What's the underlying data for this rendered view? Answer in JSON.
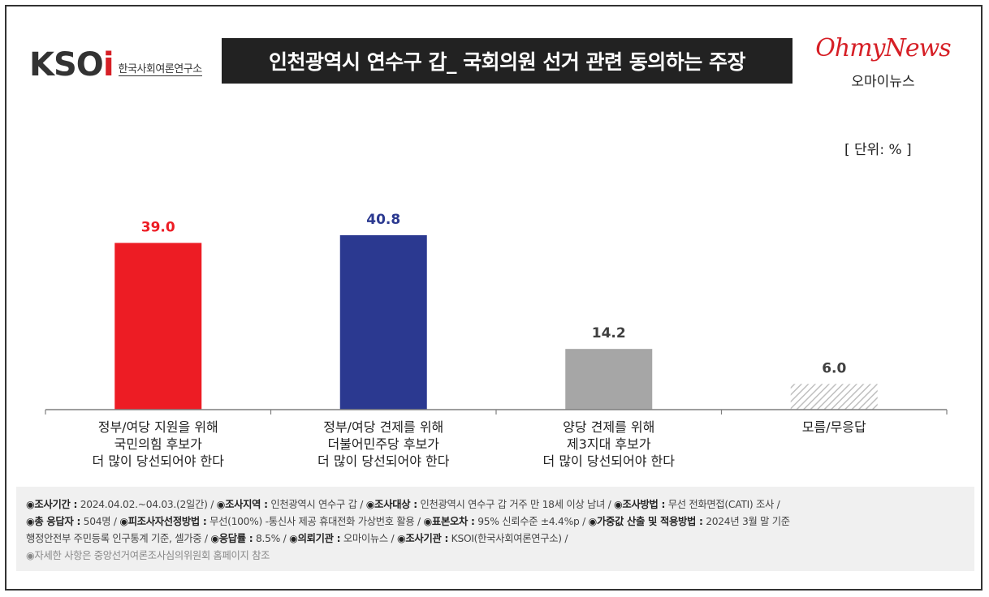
{
  "header": {
    "logo_mark_left": "KSO",
    "logo_mark_right": "i",
    "logo_sub": "한국사회여론연구소",
    "title": "인천광역시 연수구 갑_ 국회의원 선거 관련 동의하는 주장",
    "ohmynews_en": "OhmyNews",
    "ohmynews_ko": "오마이뉴스"
  },
  "unit_label": "[ 단위: % ]",
  "colors": {
    "bar_1": "#ed1c24",
    "bar_2": "#2b3990",
    "bar_3": "#a6a6a6",
    "bar_4": "#d9d9d9",
    "label_1": "#ed1c24",
    "label_2": "#2b3990",
    "label_3": "#404040",
    "label_4": "#404040"
  },
  "chart_data": {
    "type": "bar",
    "title": "인천광역시 연수구 갑_ 국회의원 선거 관련 동의하는 주장",
    "unit": "[ 단위: % ]",
    "categories": [
      [
        "정부/여당 지원을 위해",
        "국민의힘 후보가",
        "더 많이 당선되어야 한다"
      ],
      [
        "정부/여당 견제를 위해",
        "더불어민주당 후보가",
        "더 많이 당선되어야 한다"
      ],
      [
        "양당 견제를 위해",
        "제3지대 후보가",
        "더 많이 당선되어야 한다"
      ],
      [
        "모름/무응답"
      ]
    ],
    "values": [
      39.0,
      40.8,
      14.2,
      6.0
    ],
    "value_labels": [
      "39.0",
      "40.8",
      "14.2",
      "6.0"
    ],
    "ylim": [
      0,
      45
    ],
    "grid": false,
    "legend": "none"
  },
  "footer": {
    "line1": [
      {
        "k": "◉조사기간 :",
        "v": " 2024.04.02.~04.03.(2일간)  / "
      },
      {
        "k": "◉조사지역 :",
        "v": " 인천광역시  연수구  갑 / "
      },
      {
        "k": "◉조사대상 :",
        "v": " 인천광역시  연수구  갑 거주 만 18세  이상 남녀 / "
      },
      {
        "k": "◉조사방법 :",
        "v": " 무선 전화면접(CATI)  조사 /"
      }
    ],
    "line2": [
      {
        "k": "◉총 응답자 :",
        "v": " 504명 / "
      },
      {
        "k": "◉피조사자선정방법 :",
        "v": " 무선(100%) -통신사 제공 휴대전화 가상번호 활용 / "
      },
      {
        "k": "◉표본오차 :",
        "v": " 95% 신뢰수준  ±4.4%p / "
      },
      {
        "k": "◉가중값 산출 및 적용방법 :",
        "v": " 2024년 3월 말 기준"
      }
    ],
    "line3": [
      {
        "k": "",
        "v": "행정안전부 주민등록 인구통계 기준, 셀가중 / "
      },
      {
        "k": "◉응답률 :",
        "v": " 8.5% / "
      },
      {
        "k": "◉의뢰기관 :",
        "v": " 오마이뉴스 / "
      },
      {
        "k": "◉조사기관 :",
        "v": " KSOI(한국사회여론연구소)  /"
      }
    ],
    "note": "◉자세한 사항은 중앙선거여론조사심의위원회 홈페이지 참조"
  }
}
